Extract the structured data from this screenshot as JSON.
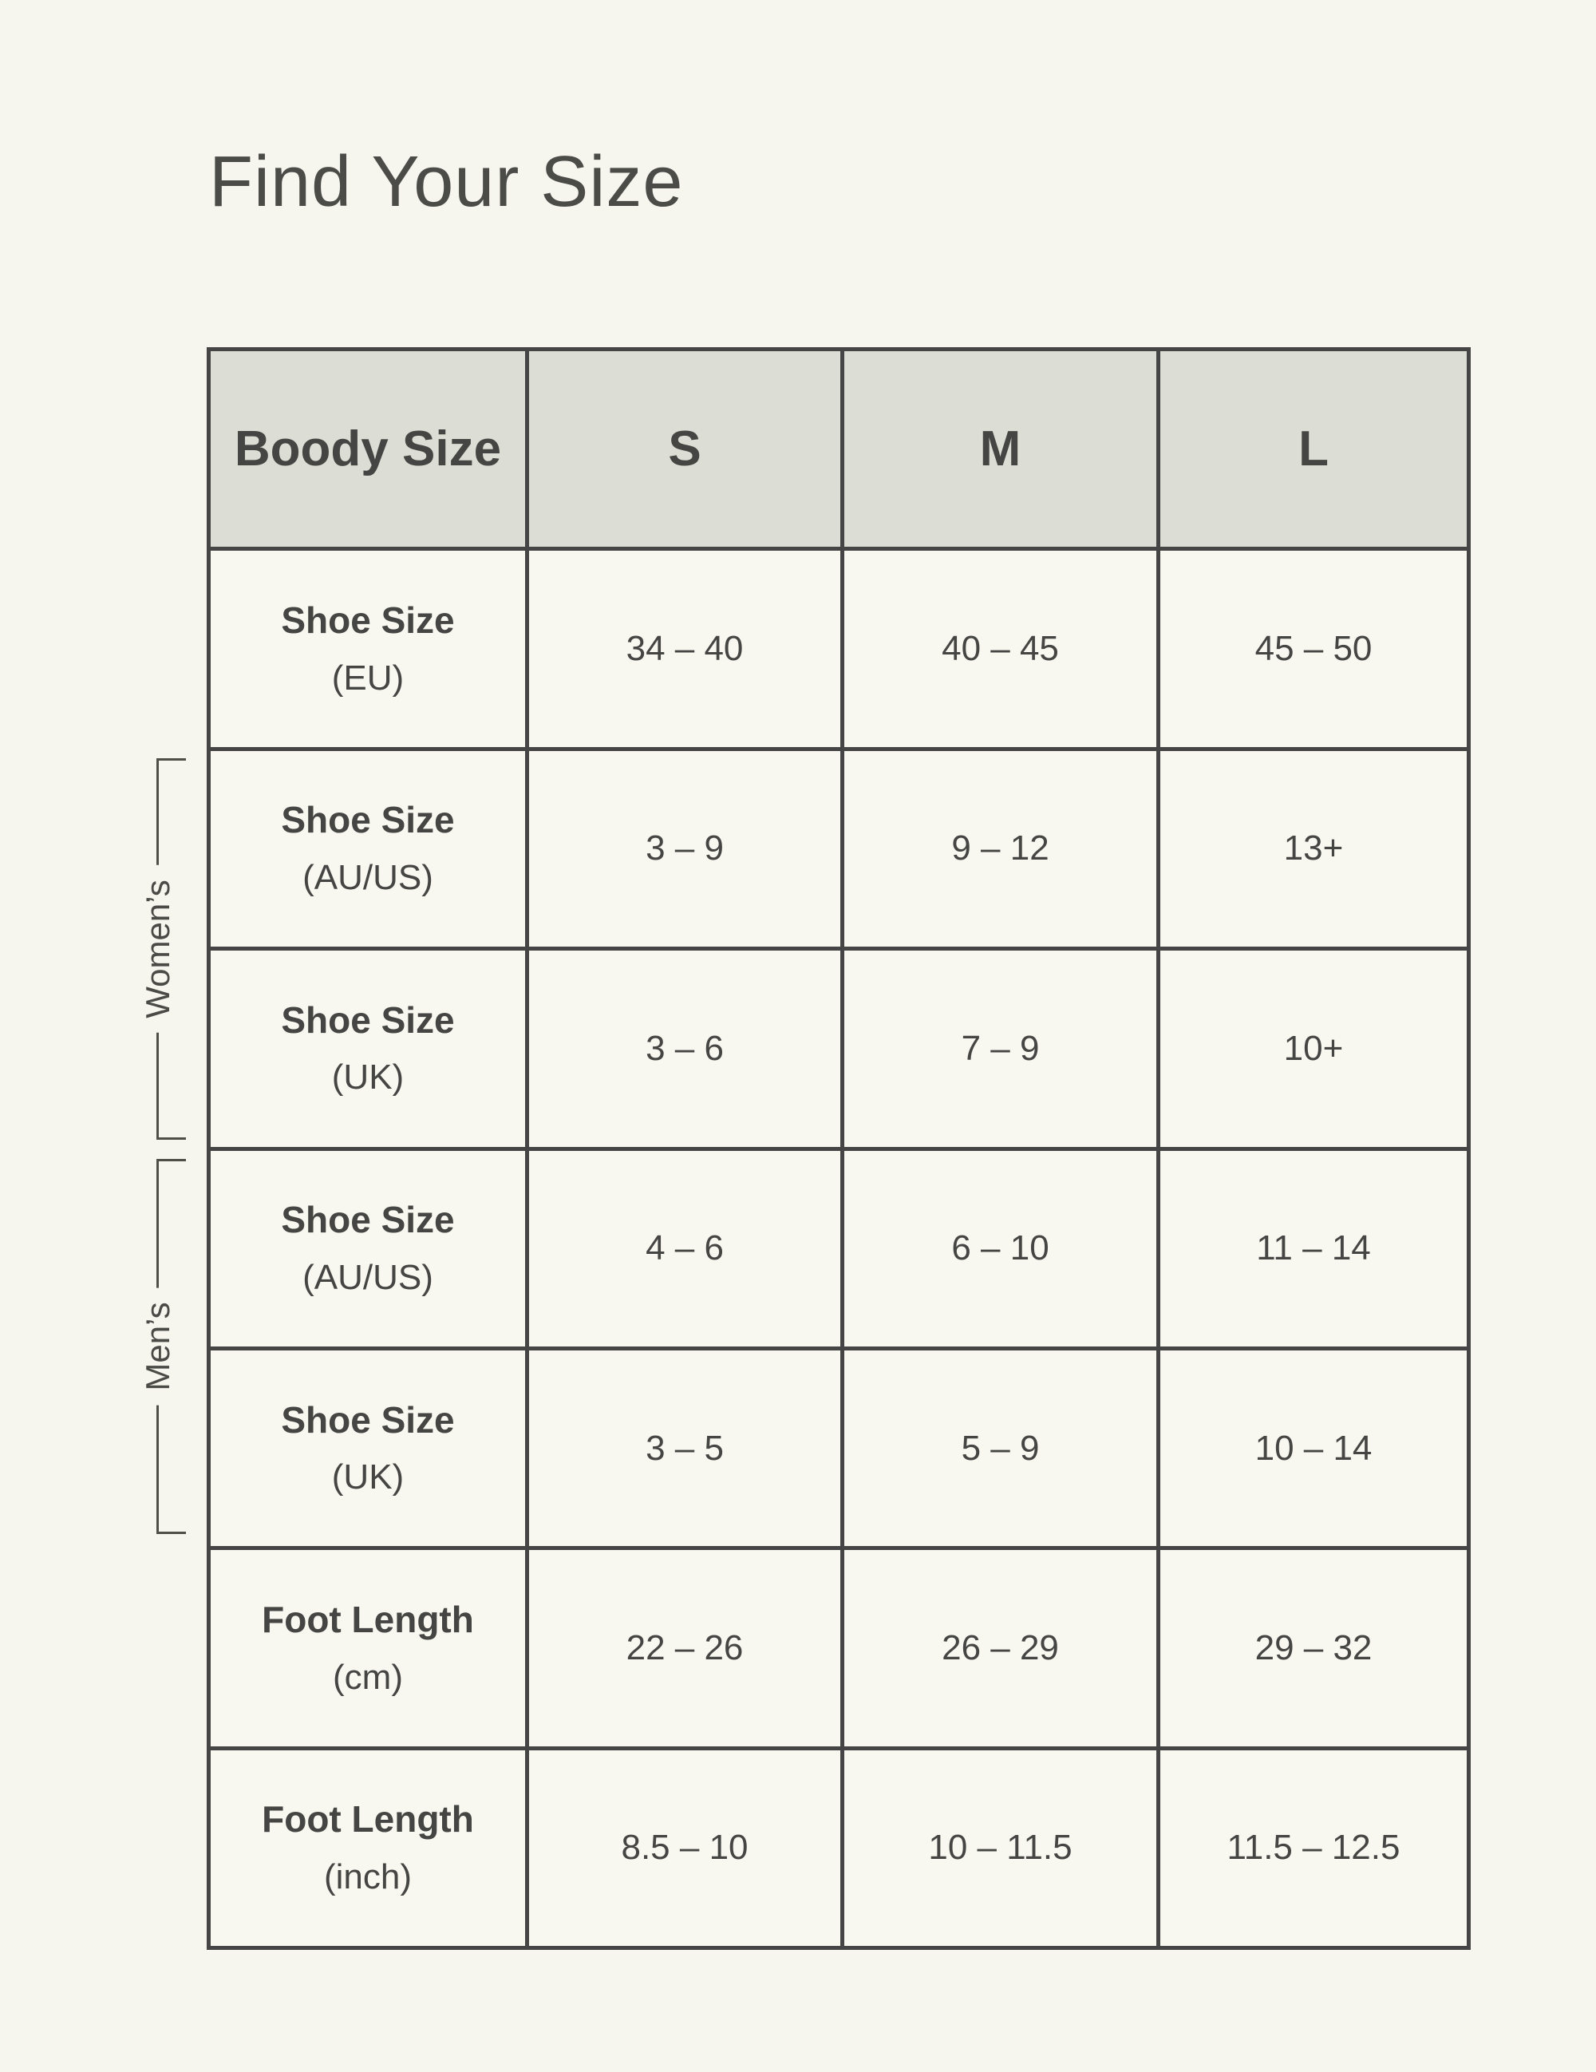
{
  "page": {
    "title": "Find Your Size"
  },
  "colors": {
    "page_bg": "#f6f6ee",
    "cell_bg": "#f8f8f1",
    "header_bg": "#dcddd4",
    "border": "#454545",
    "text": "#454543",
    "bracket": "#4f4e49"
  },
  "table": {
    "header": {
      "label": "Boody Size",
      "sizes": [
        "S",
        "M",
        "L"
      ]
    },
    "rows": [
      {
        "label": "Shoe Size",
        "sublabel": "(EU)",
        "group": "",
        "values": [
          "34 – 40",
          "40 – 45",
          "45 – 50"
        ]
      },
      {
        "label": "Shoe Size",
        "sublabel": "(AU/US)",
        "group": "Women’s",
        "values": [
          "3 – 9",
          "9 – 12",
          "13+"
        ]
      },
      {
        "label": "Shoe Size",
        "sublabel": "(UK)",
        "group": "Women’s",
        "values": [
          "3 – 6",
          "7 – 9",
          "10+"
        ]
      },
      {
        "label": "Shoe Size",
        "sublabel": "(AU/US)",
        "group": "Men’s",
        "values": [
          "4 – 6",
          "6 – 10",
          "11 – 14"
        ]
      },
      {
        "label": "Shoe Size",
        "sublabel": "(UK)",
        "group": "Men’s",
        "values": [
          "3 – 5",
          "5 – 9",
          "10 – 14"
        ]
      },
      {
        "label": "Foot Length",
        "sublabel": "(cm)",
        "group": "",
        "values": [
          "22 – 26",
          "26 – 29",
          "29 – 32"
        ]
      },
      {
        "label": "Foot Length",
        "sublabel": "(inch)",
        "group": "",
        "values": [
          "8.5 – 10",
          "10 – 11.5",
          "11.5 – 12.5"
        ]
      }
    ]
  },
  "groups": {
    "womens": "Women’s",
    "mens": "Men’s"
  }
}
